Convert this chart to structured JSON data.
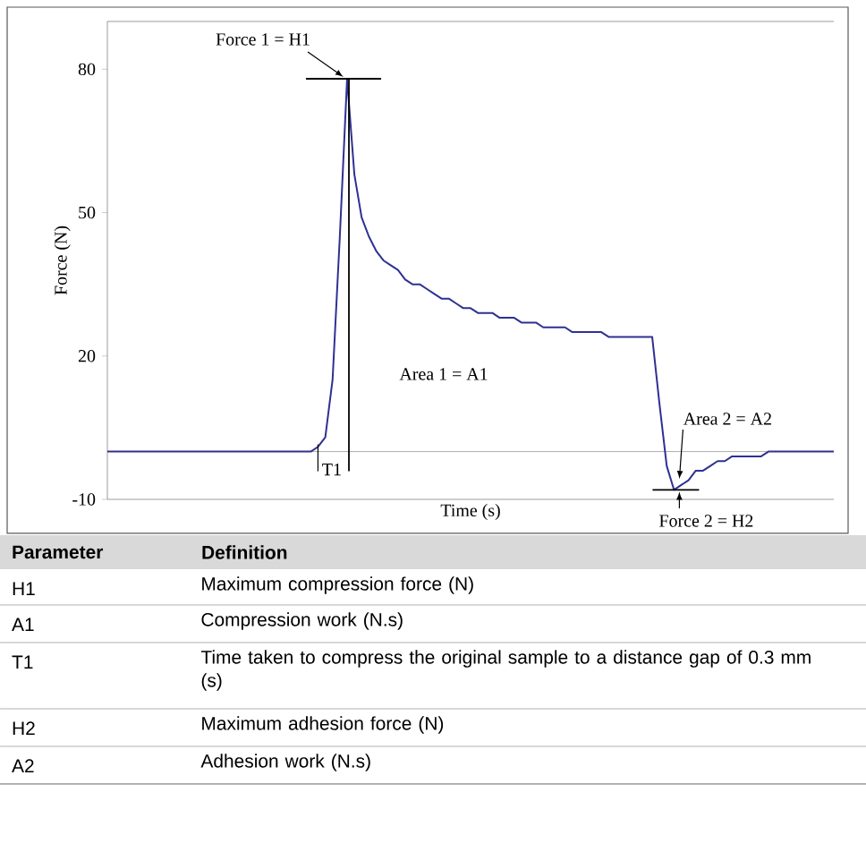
{
  "chart_data": {
    "type": "line",
    "xlabel": "Time (s)",
    "ylabel": "Force (N)",
    "color": "#2e3192",
    "categories": [
      null,
      null,
      null,
      null,
      null,
      null,
      null,
      null,
      null,
      null,
      null,
      null,
      null,
      null,
      null,
      null,
      null,
      null,
      null,
      null,
      null,
      null,
      null,
      null,
      null,
      null,
      null,
      null,
      null,
      null,
      null,
      null,
      null,
      null,
      null,
      null,
      null,
      null,
      null,
      null,
      null,
      null,
      null,
      null,
      null,
      null,
      null,
      null,
      null,
      null,
      null,
      null,
      null,
      null,
      null,
      null,
      null,
      null,
      null,
      null,
      null,
      null,
      null,
      null,
      null,
      null,
      null,
      null,
      null,
      null,
      null,
      null,
      null,
      null,
      null,
      null,
      null,
      null,
      null,
      null,
      null,
      null,
      null,
      null,
      null,
      null,
      null,
      null,
      null,
      null,
      null,
      null,
      null,
      null,
      null,
      null,
      null,
      null,
      null,
      null,
      null
    ],
    "values": [
      0,
      0,
      0,
      0,
      0,
      0,
      0,
      0,
      0,
      0,
      0,
      0,
      0,
      0,
      0,
      0,
      0,
      0,
      0,
      0,
      0,
      0,
      0,
      0,
      0,
      0,
      0,
      0,
      0,
      1,
      3,
      15,
      45,
      78,
      58,
      49,
      45,
      42,
      40,
      39,
      38,
      36,
      35,
      35,
      34,
      33,
      32,
      32,
      31,
      30,
      30,
      29,
      29,
      29,
      28,
      28,
      28,
      27,
      27,
      27,
      26,
      26,
      26,
      26,
      25,
      25,
      25,
      25,
      25,
      24,
      24,
      24,
      24,
      24,
      24,
      24,
      10,
      -3,
      -8,
      -7,
      -6,
      -4,
      -4,
      -3,
      -2,
      -2,
      -1,
      -1,
      -1,
      -1,
      -1,
      0,
      0,
      0,
      0,
      0,
      0,
      0,
      0,
      0,
      0
    ],
    "ylim": [
      -10,
      90
    ],
    "yticks": [
      80,
      50,
      20,
      -10
    ],
    "ref_lines": [
      {
        "axis": "y",
        "value": 0,
        "color": "#999999"
      }
    ],
    "annotations": [
      "Force 1 = H1",
      "T1",
      "Area 1 = A1",
      "Area 2 = A2",
      "Force 2 = H2",
      "Parameter",
      "Definition",
      "H1",
      "Maximum compression force (N)",
      "A1",
      "Compression work (N.s)",
      "T1",
      "Time taken to compress the original sample to a distance gap of 0.3 mm (s)",
      "H2",
      "Maximum adhesion force (N)",
      "A2",
      "Adhesion work (N.s)"
    ]
  }
}
